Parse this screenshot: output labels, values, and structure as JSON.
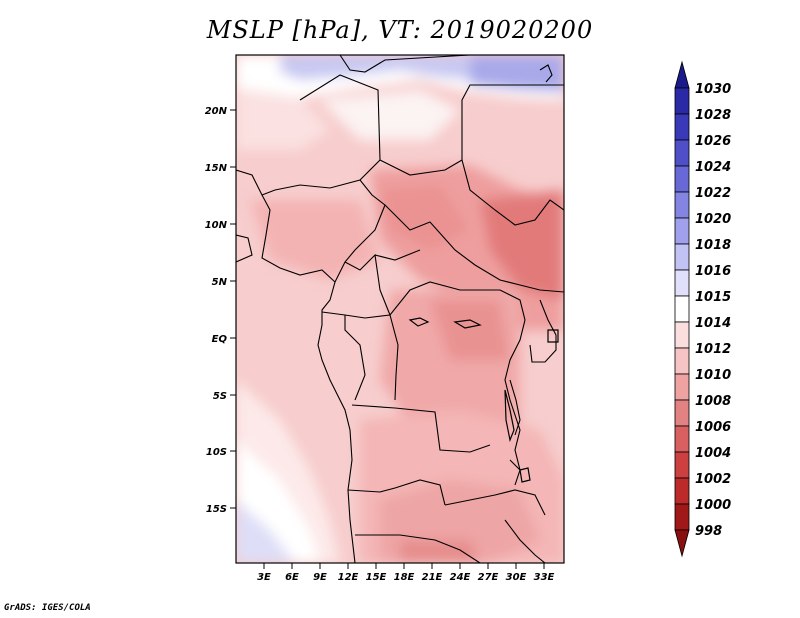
{
  "title": "MSLP [hPa], VT: 2019020200",
  "footer": "GrADS: IGES/COLA",
  "map": {
    "variable": "Mean Sea Level Pressure",
    "units": "hPa",
    "region": "Central Africa",
    "lat_labels": [
      "20N",
      "15N",
      "10N",
      "5N",
      "EQ",
      "5S",
      "10S",
      "15S"
    ],
    "lon_labels": [
      "3E",
      "6E",
      "9E",
      "12E",
      "15E",
      "18E",
      "21E",
      "24E",
      "27E",
      "30E",
      "33E"
    ]
  },
  "colorbar": {
    "labels": [
      "1030",
      "1028",
      "1026",
      "1024",
      "1022",
      "1020",
      "1018",
      "1016",
      "1015",
      "1014",
      "1012",
      "1010",
      "1008",
      "1006",
      "1004",
      "1002",
      "1000",
      "998"
    ],
    "colors": [
      "#1a1a8c",
      "#2a2aa6",
      "#3a3ab8",
      "#4f4fc8",
      "#6868d6",
      "#8484e2",
      "#a0a0ec",
      "#c2c2f4",
      "#e0e0fa",
      "#ffffff",
      "#fbdede",
      "#f6c4c4",
      "#eea2a2",
      "#e38282",
      "#d86060",
      "#cc4040",
      "#bc2a2a",
      "#a01818",
      "#8a1010"
    ]
  }
}
